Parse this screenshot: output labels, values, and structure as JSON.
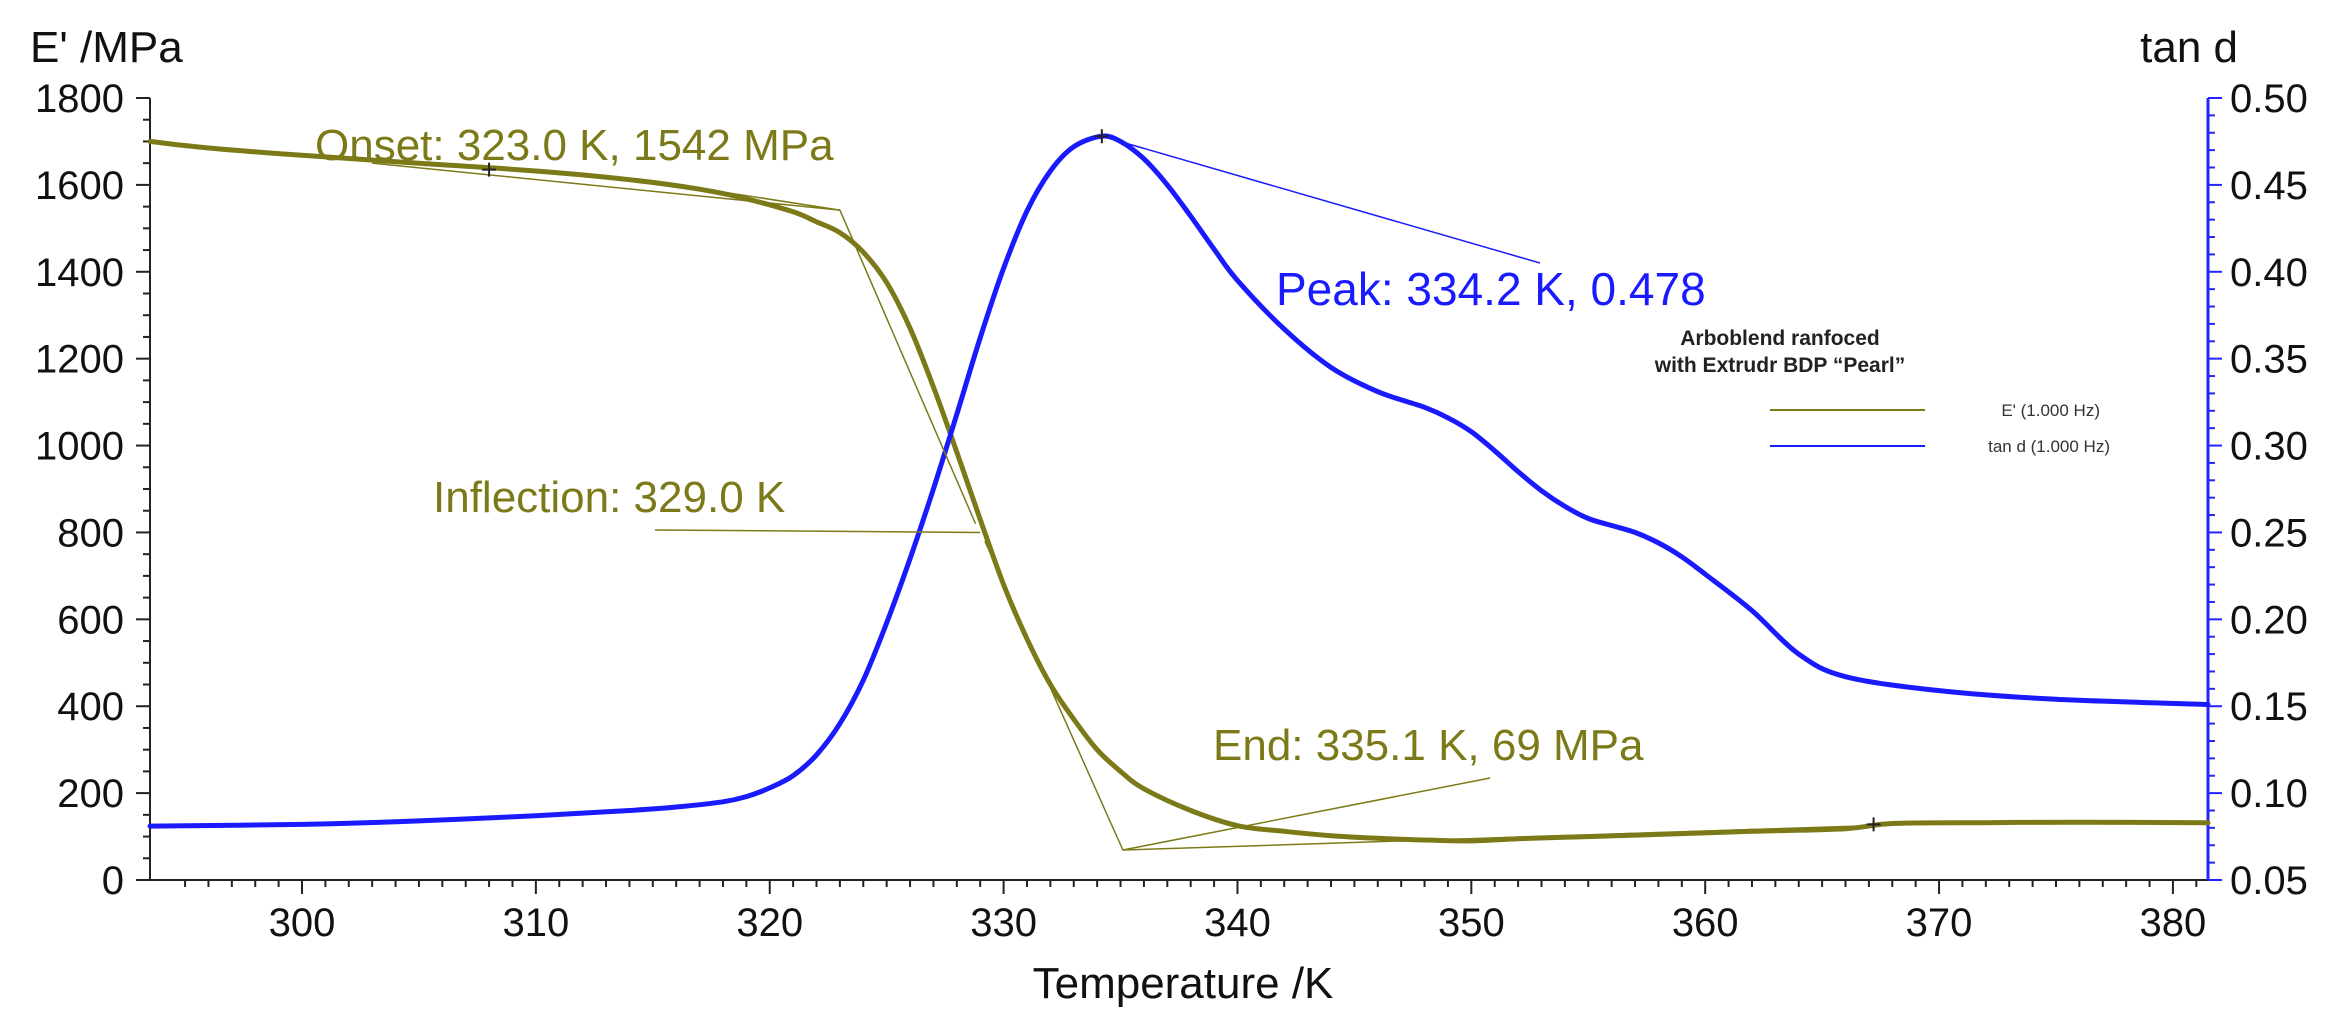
{
  "chart_data": {
    "type": "line",
    "title": "",
    "xlabel": "Temperature /K",
    "ylabel_left": "E' /MPa",
    "ylabel_right": "tan d",
    "xlim": [
      293.5,
      381.5
    ],
    "ylim_left": [
      0,
      1800
    ],
    "ylim_right": [
      0.05,
      0.5
    ],
    "x_ticks": [
      "300",
      "310",
      "320",
      "330",
      "340",
      "350",
      "360",
      "370",
      "380"
    ],
    "y_left_ticks": [
      "0",
      "200",
      "400",
      "600",
      "800",
      "1000",
      "1200",
      "1400",
      "1600",
      "1800"
    ],
    "y_right_ticks": [
      "0.05",
      "0.10",
      "0.15",
      "0.20",
      "0.25",
      "0.30",
      "0.35",
      "0.40",
      "0.45",
      "0.50"
    ],
    "colors": {
      "storage": "#7c7a18",
      "tand": "#1a1aff",
      "axis_right": "#2424ff"
    },
    "series": [
      {
        "name": "E' (1.000 Hz)",
        "axis": "left",
        "x": [
          293.5,
          296,
          300,
          305,
          310,
          314,
          317,
          319,
          321,
          322,
          323,
          324,
          325,
          326,
          327,
          328,
          329,
          330,
          331,
          332,
          333,
          334,
          335,
          336,
          338,
          340,
          342,
          344,
          346,
          348,
          350,
          352,
          355,
          358,
          362,
          366,
          368,
          372,
          376,
          381.5
        ],
        "values": [
          1700,
          1685,
          1668,
          1650,
          1632,
          1612,
          1590,
          1568,
          1538,
          1515,
          1490,
          1445,
          1375,
          1270,
          1135,
          985,
          830,
          680,
          555,
          450,
          370,
          300,
          250,
          210,
          160,
          125,
          112,
          102,
          96,
          92,
          90,
          95,
          100,
          105,
          112,
          118,
          130,
          132,
          133,
          132
        ]
      },
      {
        "name": "tan d (1.000 Hz)",
        "axis": "right",
        "x": [
          293.5,
          300,
          305,
          310,
          314,
          316,
          318,
          319,
          320,
          321,
          322,
          323,
          324,
          325,
          326,
          327,
          328,
          329,
          330,
          331,
          332,
          333,
          334.2,
          335,
          336,
          337,
          338,
          339,
          340,
          342,
          344,
          346,
          348,
          349,
          350,
          351,
          352,
          353,
          354,
          355,
          356,
          357,
          358,
          359,
          360,
          362,
          364,
          366,
          370,
          375,
          381.5
        ],
        "values": [
          0.081,
          0.082,
          0.084,
          0.087,
          0.09,
          0.092,
          0.095,
          0.098,
          0.103,
          0.11,
          0.122,
          0.14,
          0.165,
          0.198,
          0.235,
          0.275,
          0.318,
          0.362,
          0.402,
          0.435,
          0.458,
          0.472,
          0.478,
          0.475,
          0.465,
          0.45,
          0.432,
          0.413,
          0.395,
          0.367,
          0.345,
          0.331,
          0.322,
          0.316,
          0.308,
          0.297,
          0.285,
          0.274,
          0.265,
          0.258,
          0.254,
          0.25,
          0.244,
          0.236,
          0.226,
          0.205,
          0.18,
          0.167,
          0.159,
          0.154,
          0.151
        ]
      }
    ],
    "annotations": [
      {
        "name": "onset",
        "text": "Onset: 323.0 K, 1542 MPa",
        "x": 323.0,
        "y": 1542,
        "axis": "left"
      },
      {
        "name": "inflection",
        "text": "Inflection: 329.0 K",
        "x": 329.0,
        "y": 800,
        "axis": "left"
      },
      {
        "name": "end",
        "text": "End: 335.1 K, 69 MPa",
        "x": 335.1,
        "y": 69,
        "axis": "left"
      },
      {
        "name": "peak",
        "text": "Peak: 334.2 K, 0.478",
        "x": 334.2,
        "y": 0.478,
        "axis": "right"
      }
    ],
    "legend": {
      "placement": "right",
      "title_lines": [
        "Arboblend ranfoced",
        "with Extrudr BDP “Pearl”"
      ],
      "entries": [
        "E' (1.000 Hz)",
        "tan d (1.000 Hz)"
      ]
    }
  }
}
